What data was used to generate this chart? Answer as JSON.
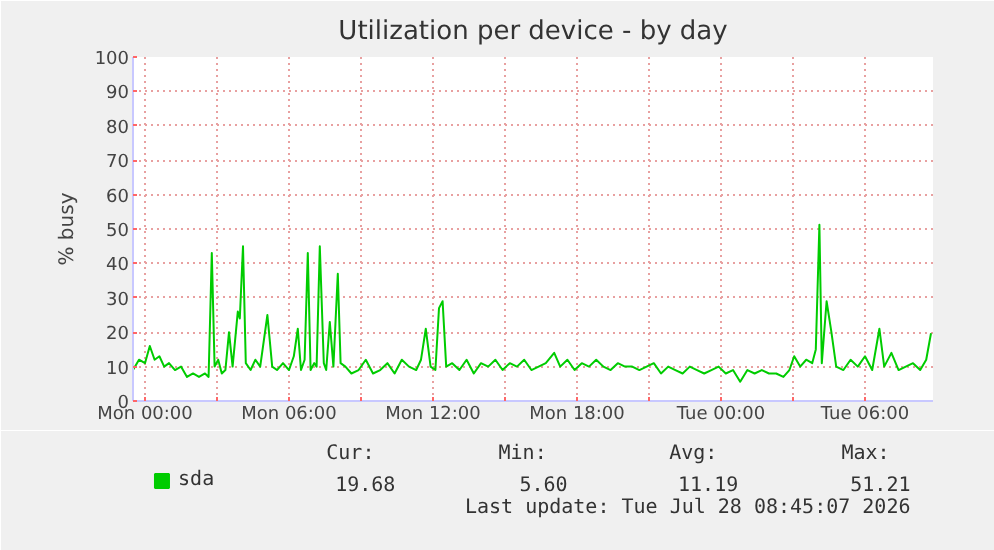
{
  "chart_data": {
    "type": "line",
    "title": "Utilization per device - by day",
    "ylabel": "% busy",
    "xlim": [
      "2026-07-26T23:30",
      "2026-07-28T08:50"
    ],
    "ylim": [
      0,
      100
    ],
    "xticks": [
      {
        "value": "2026-07-27T00:00",
        "label": "Mon 00:00"
      },
      {
        "value": "2026-07-27T03:00",
        "label": null
      },
      {
        "value": "2026-07-27T06:00",
        "label": "Mon 06:00"
      },
      {
        "value": "2026-07-27T09:00",
        "label": null
      },
      {
        "value": "2026-07-27T12:00",
        "label": "Mon 12:00"
      },
      {
        "value": "2026-07-27T15:00",
        "label": null
      },
      {
        "value": "2026-07-27T18:00",
        "label": "Mon 18:00"
      },
      {
        "value": "2026-07-27T21:00",
        "label": null
      },
      {
        "value": "2026-07-28T00:00",
        "label": "Tue 00:00"
      },
      {
        "value": "2026-07-28T03:00",
        "label": null
      },
      {
        "value": "2026-07-28T06:00",
        "label": "Tue 06:00"
      }
    ],
    "yticks": [
      0,
      10,
      20,
      30,
      40,
      50,
      60,
      70,
      80,
      90,
      100
    ],
    "grid": true,
    "legend": "bottom left",
    "marker": "none",
    "line_style": "solid",
    "series": [
      {
        "name": "sda",
        "color": "#00cc00",
        "x": [
          "2026-07-26T23:30",
          "2026-07-26T23:45",
          "2026-07-27T00:00",
          "2026-07-27T00:12",
          "2026-07-27T00:24",
          "2026-07-27T00:36",
          "2026-07-27T00:48",
          "2026-07-27T01:00",
          "2026-07-27T01:15",
          "2026-07-27T01:30",
          "2026-07-27T01:45",
          "2026-07-27T02:00",
          "2026-07-27T02:15",
          "2026-07-27T02:30",
          "2026-07-27T02:39",
          "2026-07-27T02:47",
          "2026-07-27T02:54",
          "2026-07-27T03:03",
          "2026-07-27T03:12",
          "2026-07-27T03:21",
          "2026-07-27T03:30",
          "2026-07-27T03:39",
          "2026-07-27T03:52",
          "2026-07-27T03:57",
          "2026-07-27T04:05",
          "2026-07-27T04:12",
          "2026-07-27T04:24",
          "2026-07-27T04:36",
          "2026-07-27T04:48",
          "2026-07-27T05:06",
          "2026-07-27T05:18",
          "2026-07-27T05:30",
          "2026-07-27T05:45",
          "2026-07-27T06:00",
          "2026-07-27T06:12",
          "2026-07-27T06:22",
          "2026-07-27T06:30",
          "2026-07-27T06:39",
          "2026-07-27T06:47",
          "2026-07-27T06:54",
          "2026-07-27T07:03",
          "2026-07-27T07:09",
          "2026-07-27T07:17",
          "2026-07-27T07:27",
          "2026-07-27T07:33",
          "2026-07-27T07:42",
          "2026-07-27T07:51",
          "2026-07-27T08:02",
          "2026-07-27T08:09",
          "2026-07-27T08:21",
          "2026-07-27T08:36",
          "2026-07-27T08:54",
          "2026-07-27T09:12",
          "2026-07-27T09:30",
          "2026-07-27T09:48",
          "2026-07-27T10:06",
          "2026-07-27T10:24",
          "2026-07-27T10:42",
          "2026-07-27T11:00",
          "2026-07-27T11:18",
          "2026-07-27T11:30",
          "2026-07-27T11:42",
          "2026-07-27T11:54",
          "2026-07-27T12:06",
          "2026-07-27T12:15",
          "2026-07-27T12:24",
          "2026-07-27T12:33",
          "2026-07-27T12:48",
          "2026-07-27T13:06",
          "2026-07-27T13:24",
          "2026-07-27T13:42",
          "2026-07-27T14:00",
          "2026-07-27T14:18",
          "2026-07-27T14:36",
          "2026-07-27T14:54",
          "2026-07-27T15:12",
          "2026-07-27T15:30",
          "2026-07-27T15:48",
          "2026-07-27T16:06",
          "2026-07-27T16:24",
          "2026-07-27T16:42",
          "2026-07-27T17:03",
          "2026-07-27T17:18",
          "2026-07-27T17:36",
          "2026-07-27T17:54",
          "2026-07-27T18:12",
          "2026-07-27T18:30",
          "2026-07-27T18:48",
          "2026-07-27T19:06",
          "2026-07-27T19:24",
          "2026-07-27T19:42",
          "2026-07-27T20:00",
          "2026-07-27T20:18",
          "2026-07-27T20:36",
          "2026-07-27T20:54",
          "2026-07-27T21:12",
          "2026-07-27T21:30",
          "2026-07-27T21:48",
          "2026-07-27T22:06",
          "2026-07-27T22:24",
          "2026-07-27T22:42",
          "2026-07-27T23:00",
          "2026-07-27T23:18",
          "2026-07-27T23:36",
          "2026-07-27T23:54",
          "2026-07-28T00:12",
          "2026-07-28T00:30",
          "2026-07-28T00:48",
          "2026-07-28T01:06",
          "2026-07-28T01:24",
          "2026-07-28T01:42",
          "2026-07-28T02:00",
          "2026-07-28T02:18",
          "2026-07-28T02:36",
          "2026-07-28T02:51",
          "2026-07-28T03:03",
          "2026-07-28T03:18",
          "2026-07-28T03:33",
          "2026-07-28T03:48",
          "2026-07-28T03:57",
          "2026-07-28T04:06",
          "2026-07-28T04:12",
          "2026-07-28T04:24",
          "2026-07-28T04:36",
          "2026-07-28T04:48",
          "2026-07-28T05:06",
          "2026-07-28T05:24",
          "2026-07-28T05:42",
          "2026-07-28T06:00",
          "2026-07-28T06:18",
          "2026-07-28T06:36",
          "2026-07-28T06:48",
          "2026-07-28T07:06",
          "2026-07-28T07:24",
          "2026-07-28T07:42",
          "2026-07-28T08:00",
          "2026-07-28T08:18",
          "2026-07-28T08:33",
          "2026-07-28T08:45"
        ],
        "values": [
          9,
          12,
          11,
          16,
          12,
          13,
          10,
          11,
          9,
          10,
          7,
          8,
          7,
          8,
          7,
          43,
          10,
          12,
          8,
          9,
          20,
          10,
          26,
          24,
          45,
          11,
          9,
          12,
          10,
          25,
          10,
          9,
          11,
          9,
          13,
          21,
          9,
          12,
          43,
          9,
          11,
          10,
          45,
          11,
          9,
          23,
          10,
          37,
          11,
          10,
          8,
          9,
          12,
          8,
          9,
          11,
          8,
          12,
          10,
          9,
          12,
          21,
          10,
          9,
          27,
          29,
          10,
          11,
          9,
          12,
          8,
          11,
          10,
          12,
          9,
          11,
          10,
          12,
          9,
          10,
          11,
          14,
          10,
          12,
          9,
          11,
          10,
          12,
          10,
          9,
          11,
          10,
          10,
          9,
          10,
          11,
          8,
          10,
          9,
          8,
          10,
          9,
          8,
          9,
          10,
          8,
          9,
          5.6,
          9,
          8,
          9,
          8,
          8,
          7,
          9,
          13,
          10,
          12,
          11,
          15,
          51.21,
          11,
          29,
          20,
          10,
          9,
          12,
          10,
          13,
          9,
          21,
          10,
          14,
          9,
          10,
          11,
          9,
          12,
          19.68
        ]
      }
    ],
    "annotations": [
      "Cur:",
      "19.68",
      "Min:",
      "5.60",
      "Avg:",
      "11.19",
      "Max:",
      "51.21",
      "Last update: Tue Jul 28 08:45:07 2026"
    ]
  }
}
